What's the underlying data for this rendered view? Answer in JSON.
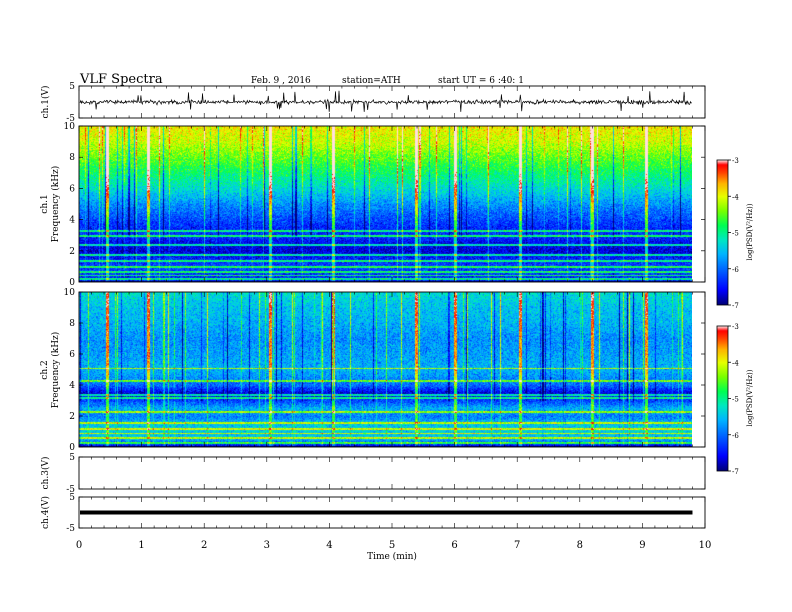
{
  "header": {
    "title": "VLF Spectra",
    "date": "Feb. 9 , 2016",
    "station": "station=ATH",
    "start": "start UT = 6 :40: 1"
  },
  "colors": {
    "spectrogram_scale": [
      "#00007a",
      "#0000ff",
      "#0055ff",
      "#00b4ff",
      "#00e8c0",
      "#00ff50",
      "#78ff00",
      "#e6ff00",
      "#ffb400",
      "#ff3c00",
      "#ff0000",
      "#ffdede"
    ],
    "axes": "#000000",
    "background": "#ffffff"
  },
  "chart_data": [
    {
      "type": "line",
      "panel": "ch1-waveform",
      "ylabel": "ch.1(V)",
      "ylim": [
        -5,
        5
      ],
      "yticks": [
        "5",
        "-5"
      ],
      "xlim": [
        0,
        10
      ],
      "x_extent_min": [
        0,
        9.8
      ],
      "description_values": {
        "mean": 0,
        "typical_amplitude": 0.8,
        "spike_amplitude": 3.5
      }
    },
    {
      "type": "heatmap",
      "panel": "ch1-spectrogram",
      "ylabel": "ch.1",
      "ylabel2": "Frequency (kHz)",
      "ylim": [
        0,
        10
      ],
      "yticks": [
        "0",
        "2",
        "4",
        "6",
        "8",
        "10"
      ],
      "xlim": [
        0,
        10
      ],
      "x_extent_min": [
        0,
        9.8
      ],
      "z_label": "log(PSD(V²/Hz))",
      "z_range": [
        -7,
        -3
      ],
      "z_ticks": [
        "-3",
        "-4",
        "-5",
        "-6",
        "-7"
      ],
      "frequency_profile_kHz": [
        0,
        0.5,
        1,
        1.5,
        2,
        2.5,
        3,
        3.5,
        4,
        5,
        6,
        7,
        8,
        9,
        10
      ],
      "frequency_profile_logpsd": [
        -6.5,
        -6.3,
        -6.2,
        -6.4,
        -6.7,
        -6.6,
        -6.3,
        -6.4,
        -6.2,
        -5.8,
        -5.3,
        -4.9,
        -4.5,
        -4.1,
        -3.9
      ],
      "narrowband_lines_kHz": [
        0.2,
        0.45,
        0.7,
        1.0,
        1.4,
        1.75,
        2.4,
        3.0,
        3.3
      ]
    },
    {
      "type": "heatmap",
      "panel": "ch2-spectrogram",
      "ylabel": "ch.2",
      "ylabel2": "Frequency (kHz)",
      "ylim": [
        0,
        10
      ],
      "yticks": [
        "0",
        "2",
        "4",
        "6",
        "8",
        "10"
      ],
      "xlim": [
        0,
        10
      ],
      "x_extent_min": [
        0,
        9.8
      ],
      "z_label": "log(PSD(V²/Hz))",
      "z_range": [
        -7,
        -3
      ],
      "z_ticks": [
        "-3",
        "-4",
        "-5",
        "-6",
        "-7"
      ],
      "frequency_profile_kHz": [
        0,
        0.5,
        1,
        1.5,
        2,
        2.5,
        3,
        3.5,
        4,
        5,
        6,
        7,
        8,
        9,
        10
      ],
      "frequency_profile_logpsd": [
        -6.8,
        -5.6,
        -5.4,
        -5.5,
        -5.9,
        -5.6,
        -6.2,
        -6.7,
        -6.0,
        -5.6,
        -5.7,
        -5.8,
        -5.6,
        -5.5,
        -5.3
      ],
      "narrowband_lines_kHz": [
        0.3,
        0.6,
        0.9,
        1.2,
        1.6,
        2.3,
        3.2,
        3.4,
        4.3,
        5.1
      ]
    },
    {
      "type": "line",
      "panel": "ch3-waveform",
      "ylabel": "ch.3(V)",
      "ylim": [
        -5,
        5
      ],
      "yticks": [
        "5",
        "-5"
      ],
      "xlim": [
        0,
        10
      ],
      "empty": true
    },
    {
      "type": "line",
      "panel": "ch4-waveform",
      "ylabel": "ch.4(V)",
      "ylim": [
        -5,
        5
      ],
      "yticks": [
        "5",
        "-5"
      ],
      "xlim": [
        0,
        10
      ],
      "x_extent_min": [
        0,
        9.8
      ],
      "constant_value": 0,
      "xlabel": "Time (min)",
      "xticks": [
        "0",
        "1",
        "2",
        "3",
        "4",
        "5",
        "6",
        "7",
        "8",
        "9",
        "10"
      ]
    }
  ]
}
